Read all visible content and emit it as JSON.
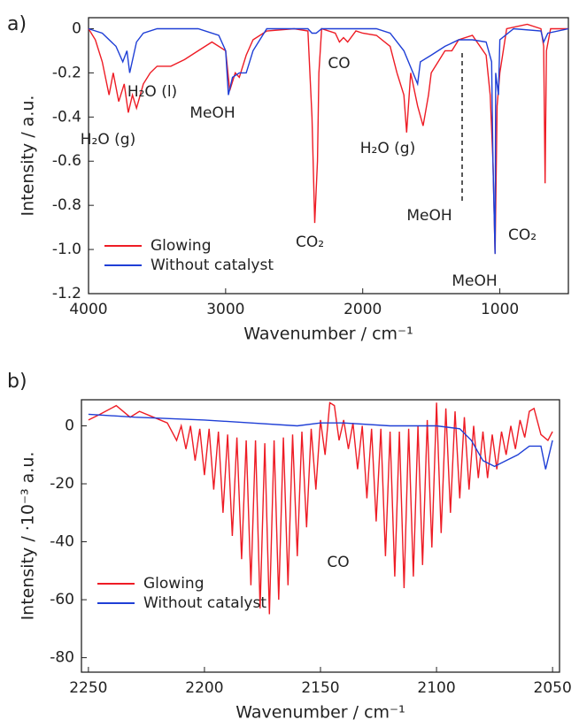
{
  "chart_data": [
    {
      "type": "line",
      "panel_label": "a)",
      "x_label": "Wavenumber / cm⁻¹",
      "y_label": "Intensity / a.u.",
      "xlim": [
        4000,
        500
      ],
      "ylim": [
        -1.2,
        0.05
      ],
      "xticks": [
        4000,
        3000,
        2000,
        1000
      ],
      "yticks": [
        0,
        -0.2,
        -0.4,
        -0.6,
        -0.8,
        {
          "value": -1,
          "label": "-1.0"
        },
        -1.2
      ],
      "legend": "lower left",
      "annotations": [
        "H₂O (g)",
        "H₂O (l)",
        "MeOH",
        "CO₂",
        "CO",
        "H₂O (g)",
        "MeOH",
        "MeOH",
        "CO₂"
      ],
      "series": [
        {
          "name": "Glowing",
          "color": "#ee1c25",
          "x": [
            4000,
            3950,
            3900,
            3850,
            3820,
            3780,
            3740,
            3710,
            3680,
            3650,
            3600,
            3550,
            3500,
            3400,
            3300,
            3200,
            3100,
            3000,
            2970,
            2930,
            2900,
            2850,
            2800,
            2700,
            2500,
            2400,
            2370,
            2350,
            2330,
            2320,
            2300,
            2200,
            2170,
            2140,
            2110,
            2050,
            2000,
            1900,
            1800,
            1750,
            1700,
            1680,
            1650,
            1600,
            1560,
            1520,
            1500,
            1450,
            1400,
            1350,
            1300,
            1200,
            1100,
            1070,
            1050,
            1035,
            1020,
            1000,
            950,
            800,
            700,
            680,
            670,
            660,
            630,
            500
          ],
          "values": [
            0,
            -0.05,
            -0.15,
            -0.3,
            -0.2,
            -0.33,
            -0.25,
            -0.38,
            -0.3,
            -0.36,
            -0.25,
            -0.2,
            -0.17,
            -0.17,
            -0.14,
            -0.1,
            -0.06,
            -0.1,
            -0.28,
            -0.2,
            -0.22,
            -0.12,
            -0.05,
            -0.01,
            0,
            -0.01,
            -0.4,
            -0.88,
            -0.6,
            -0.2,
            0,
            -0.02,
            -0.06,
            -0.04,
            -0.06,
            -0.01,
            -0.02,
            -0.03,
            -0.08,
            -0.2,
            -0.3,
            -0.47,
            -0.2,
            -0.35,
            -0.44,
            -0.3,
            -0.2,
            -0.15,
            -0.1,
            -0.1,
            -0.05,
            -0.03,
            -0.12,
            -0.3,
            -0.6,
            -1.02,
            -0.35,
            -0.2,
            0,
            0.02,
            0,
            -0.08,
            -0.7,
            -0.1,
            0,
            0
          ]
        },
        {
          "name": "Without catalyst",
          "color": "#1f3fd6",
          "x": [
            4000,
            3900,
            3800,
            3750,
            3720,
            3700,
            3650,
            3600,
            3500,
            3200,
            3050,
            3000,
            2980,
            2950,
            2900,
            2850,
            2800,
            2700,
            2400,
            2370,
            2340,
            2300,
            1900,
            1800,
            1700,
            1600,
            1580,
            1500,
            1400,
            1300,
            1200,
            1100,
            1060,
            1050,
            1035,
            1030,
            1010,
            1000,
            900,
            700,
            680,
            650,
            500
          ],
          "values": [
            0,
            -0.02,
            -0.08,
            -0.15,
            -0.1,
            -0.2,
            -0.06,
            -0.02,
            0,
            0,
            -0.03,
            -0.1,
            -0.3,
            -0.22,
            -0.2,
            -0.2,
            -0.1,
            0,
            0,
            -0.02,
            -0.02,
            0,
            0,
            -0.02,
            -0.1,
            -0.25,
            -0.15,
            -0.12,
            -0.08,
            -0.05,
            -0.05,
            -0.06,
            -0.15,
            -0.6,
            -1.02,
            -0.2,
            -0.3,
            -0.05,
            0,
            -0.01,
            -0.06,
            -0.02,
            0
          ]
        }
      ]
    },
    {
      "type": "line",
      "panel_label": "b)",
      "x_label": "Wavenumber / cm⁻¹",
      "y_label": "Intensity / ·10⁻³ a.u.",
      "xlim": [
        2253,
        2047
      ],
      "ylim": [
        -85,
        9
      ],
      "xticks": [
        2250,
        2200,
        2150,
        2100,
        2050
      ],
      "yticks": [
        0,
        -20,
        -40,
        -60,
        -80
      ],
      "legend": "lower left",
      "annotations": [
        "CO"
      ],
      "series": [
        {
          "name": "Glowing",
          "color": "#ee1c25",
          "x": [
            2250,
            2245,
            2238,
            2232,
            2228,
            2222,
            2216,
            2212,
            2210,
            2208,
            2206,
            2204,
            2202,
            2200,
            2198,
            2196,
            2194,
            2192,
            2190,
            2188,
            2186,
            2184,
            2182,
            2180,
            2178,
            2176,
            2174,
            2172,
            2170,
            2168,
            2166,
            2164,
            2162,
            2160,
            2158,
            2156,
            2154,
            2152,
            2150,
            2148,
            2146,
            2144,
            2142,
            2140,
            2138,
            2136,
            2134,
            2132,
            2130,
            2128,
            2126,
            2124,
            2122,
            2120,
            2118,
            2116,
            2114,
            2112,
            2110,
            2108,
            2106,
            2104,
            2102,
            2100,
            2098,
            2096,
            2094,
            2092,
            2090,
            2088,
            2086,
            2084,
            2082,
            2080,
            2078,
            2076,
            2074,
            2072,
            2070,
            2068,
            2066,
            2064,
            2062,
            2060,
            2058,
            2055,
            2052,
            2050
          ],
          "values": [
            2,
            4,
            7,
            3,
            5,
            3,
            1,
            -5,
            0,
            -8,
            0,
            -12,
            -1,
            -17,
            -1,
            -22,
            -2,
            -30,
            -3,
            -38,
            -4,
            -46,
            -5,
            -55,
            -5,
            -63,
            -6,
            -65,
            -5,
            -60,
            -4,
            -55,
            -3,
            -45,
            -2,
            -35,
            -1,
            -22,
            2,
            -10,
            8,
            7,
            -5,
            2,
            -8,
            1,
            -15,
            0,
            -25,
            -1,
            -33,
            -1,
            -45,
            -2,
            -52,
            -2,
            -56,
            -1,
            -52,
            0,
            -48,
            2,
            -42,
            8,
            -37,
            6,
            -30,
            5,
            -25,
            3,
            -22,
            0,
            -18,
            -2,
            -18,
            -3,
            -15,
            -2,
            -10,
            0,
            -8,
            2,
            -4,
            5,
            6,
            -3,
            -5,
            -2
          ]
        },
        {
          "name": "Without catalyst",
          "color": "#1f3fd6",
          "x": [
            2250,
            2230,
            2200,
            2180,
            2160,
            2150,
            2140,
            2120,
            2100,
            2090,
            2085,
            2080,
            2075,
            2070,
            2065,
            2060,
            2055,
            2053,
            2050
          ],
          "values": [
            4,
            3,
            2,
            1,
            0,
            1,
            1,
            0,
            0,
            -1,
            -5,
            -12,
            -14,
            -12,
            -10,
            -7,
            -7,
            -15,
            -5
          ]
        }
      ]
    }
  ]
}
